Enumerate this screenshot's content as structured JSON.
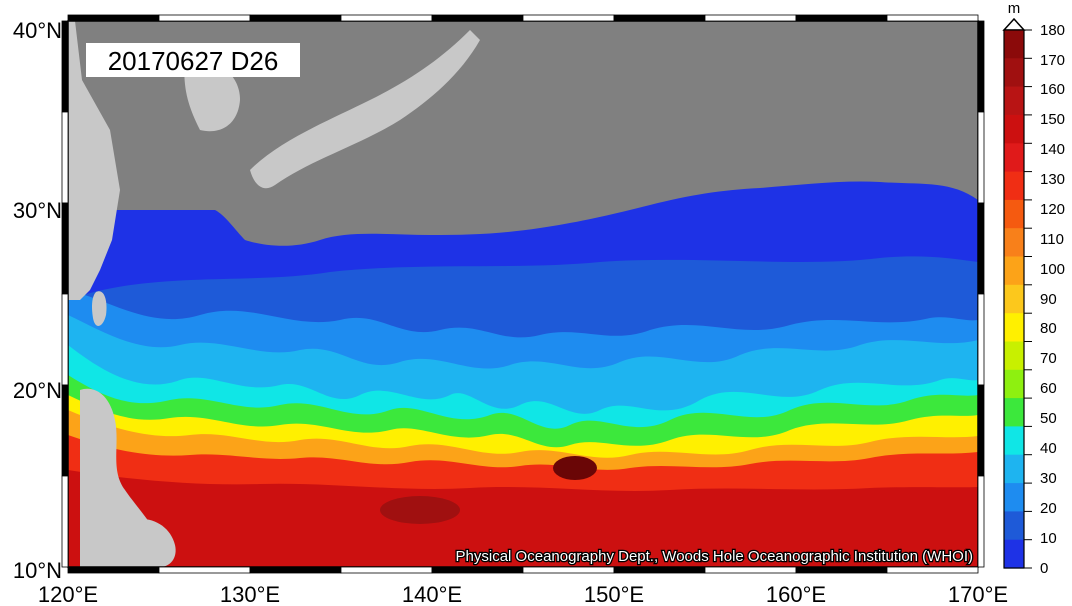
{
  "map": {
    "title": "20170627 D26",
    "credit": "Physical Oceanography Dept., Woods Hole Oceanographic Institution (WHOI)",
    "lon_labels": [
      "120°E",
      "130°E",
      "140°E",
      "150°E",
      "160°E",
      "170°E"
    ],
    "lat_labels": [
      "40°N",
      "30°N",
      "20°N",
      "10°N"
    ],
    "colorbar": {
      "unit": "m",
      "labels": [
        "180",
        "170",
        "160",
        "150",
        "140",
        "130",
        "120",
        "110",
        "100",
        "90",
        "80",
        "70",
        "60",
        "50",
        "40",
        "30",
        "20",
        "10",
        "0"
      ],
      "colors": [
        "#8b0a0a",
        "#a01010",
        "#b81414",
        "#cc1010",
        "#e01a1a",
        "#f02e14",
        "#f55a10",
        "#f8801a",
        "#fca318",
        "#fcc81c",
        "#fff000",
        "#c8f000",
        "#8ef010",
        "#3ce83c",
        "#10e6e6",
        "#1eb4f0",
        "#1e8cf0",
        "#1e5ad8",
        "#1e32e6"
      ]
    },
    "land_color": "#808080",
    "coast_land_color": "#c8c8c8"
  }
}
